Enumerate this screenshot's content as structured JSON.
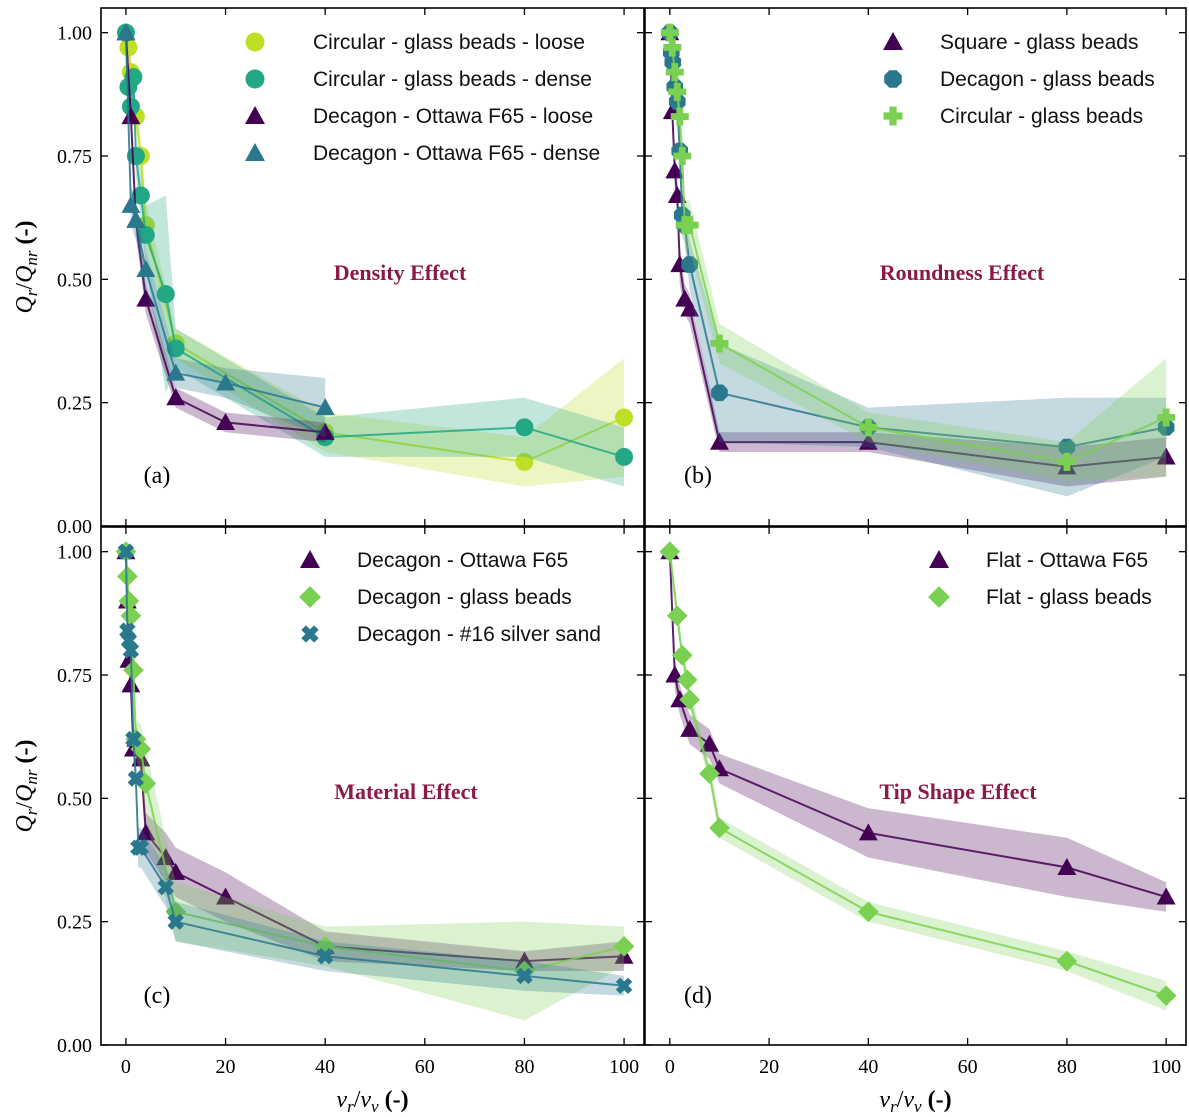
{
  "chart_data": [
    {
      "type": "scatter",
      "panel_tag": "(a)",
      "annotation": "Density Effect",
      "xlim": [
        -5,
        104
      ],
      "ylim": [
        0,
        1.05
      ],
      "ylabel_main": "Q",
      "ylabel_sub_r": "r",
      "ylabel_slash": "/",
      "ylabel_sub_nr": "nr",
      "ylabel_unit": " (-)",
      "yticks": [
        "0.00",
        "0.25",
        "0.50",
        "0.75",
        "1.00"
      ],
      "legend_position": "top-right",
      "series": [
        {
          "name": "Circular - glass beads - loose",
          "color": "#bddf26",
          "marker": "circle",
          "x": [
            0,
            0.5,
            1,
            2,
            3,
            4,
            10,
            40,
            80,
            100
          ],
          "y": [
            1.0,
            0.97,
            0.92,
            0.83,
            0.75,
            0.61,
            0.37,
            0.19,
            0.13,
            0.22
          ],
          "band": [
            0.02,
            0.02,
            0.02,
            0.03,
            0.04,
            0.05,
            0.03,
            0.04,
            0.05,
            0.12
          ]
        },
        {
          "name": "Circular - glass beads - dense",
          "color": "#22a884",
          "marker": "circle",
          "x": [
            0,
            0.5,
            1,
            1.5,
            2,
            3,
            4,
            8,
            10,
            40,
            80,
            100
          ],
          "y": [
            1.0,
            0.89,
            0.85,
            0.91,
            0.75,
            0.67,
            0.59,
            0.47,
            0.36,
            0.18,
            0.2,
            0.14
          ],
          "band": [
            0.02,
            0.03,
            0.03,
            0.03,
            0.04,
            0.05,
            0.06,
            0.2,
            0.04,
            0.04,
            0.06,
            0.06
          ]
        },
        {
          "name": "Decagon - Ottawa F65 - loose",
          "color": "#440154",
          "marker": "triangle",
          "x": [
            0,
            1,
            2,
            4,
            10,
            20,
            40
          ],
          "y": [
            1.0,
            0.83,
            0.62,
            0.46,
            0.26,
            0.21,
            0.19
          ],
          "band": [
            0.02,
            0.03,
            0.03,
            0.03,
            0.02,
            0.02,
            0.02
          ]
        },
        {
          "name": "Decagon - Ottawa F65 - dense",
          "color": "#2a788e",
          "marker": "triangle",
          "x": [
            0,
            1,
            2,
            4,
            10,
            20,
            40
          ],
          "y": [
            1.0,
            0.65,
            0.62,
            0.52,
            0.31,
            0.29,
            0.24
          ],
          "band": [
            0.02,
            0.04,
            0.04,
            0.04,
            0.03,
            0.03,
            0.06
          ]
        }
      ]
    },
    {
      "type": "scatter",
      "panel_tag": "(b)",
      "annotation": "Roundness Effect",
      "xlim": [
        -5,
        104
      ],
      "ylim": [
        0,
        1.05
      ],
      "legend_position": "top-right",
      "series": [
        {
          "name": "Square - glass beads",
          "color": "#440154",
          "marker": "triangle",
          "x": [
            0,
            0.5,
            1,
            1.5,
            2,
            3,
            4,
            10,
            40,
            80,
            100
          ],
          "y": [
            1.0,
            0.84,
            0.72,
            0.67,
            0.53,
            0.46,
            0.44,
            0.17,
            0.17,
            0.12,
            0.14
          ],
          "band": [
            0.02,
            0.03,
            0.03,
            0.03,
            0.04,
            0.03,
            0.03,
            0.02,
            0.02,
            0.04,
            0.04
          ]
        },
        {
          "name": "Decagon - glass beads",
          "color": "#2a788e",
          "marker": "octagon",
          "x": [
            0,
            0.3,
            0.6,
            1,
            1.5,
            2,
            2.5,
            3,
            4,
            10,
            40,
            80,
            100
          ],
          "y": [
            1.0,
            0.96,
            0.94,
            0.89,
            0.86,
            0.76,
            0.63,
            0.61,
            0.53,
            0.27,
            0.2,
            0.16,
            0.2
          ],
          "band": [
            0.02,
            0.02,
            0.02,
            0.03,
            0.03,
            0.04,
            0.04,
            0.04,
            0.05,
            0.1,
            0.04,
            0.1,
            0.06
          ]
        },
        {
          "name": "Circular - glass beads",
          "color": "#7ad151",
          "marker": "plus",
          "x": [
            0,
            0.5,
            1,
            1.5,
            2,
            2.5,
            3,
            4,
            10,
            40,
            80,
            100
          ],
          "y": [
            1.0,
            0.97,
            0.92,
            0.88,
            0.83,
            0.75,
            0.61,
            0.61,
            0.37,
            0.2,
            0.13,
            0.22
          ],
          "band": [
            0.02,
            0.02,
            0.02,
            0.03,
            0.03,
            0.04,
            0.05,
            0.05,
            0.04,
            0.03,
            0.04,
            0.12
          ]
        }
      ]
    },
    {
      "type": "scatter",
      "panel_tag": "(c)",
      "annotation": "Material Effect",
      "xlim": [
        -5,
        104
      ],
      "ylim": [
        0,
        1.05
      ],
      "xlabel_main": "v",
      "xlabel_sub_r": "r",
      "xlabel_slash": "/",
      "xlabel_sub_v": "v",
      "xlabel_unit": " (-)",
      "ylabel_main": "Q",
      "ylabel_sub_r": "r",
      "ylabel_slash": "/",
      "ylabel_sub_nr": "nr",
      "ylabel_unit": " (-)",
      "yticks": [
        "0.00",
        "0.25",
        "0.50",
        "0.75",
        "1.00"
      ],
      "xticks": [
        "0",
        "20",
        "40",
        "60",
        "80",
        "100"
      ],
      "legend_position": "top-right",
      "series": [
        {
          "name": "Decagon - Ottawa F65",
          "color": "#440154",
          "marker": "triangle",
          "x": [
            0,
            0.3,
            0.6,
            1,
            1.5,
            2,
            3,
            4,
            8,
            10,
            20,
            40,
            80,
            100
          ],
          "y": [
            1.0,
            0.9,
            0.78,
            0.73,
            0.6,
            0.62,
            0.58,
            0.43,
            0.38,
            0.35,
            0.3,
            0.2,
            0.17,
            0.18
          ],
          "band": [
            0.02,
            0.03,
            0.03,
            0.03,
            0.03,
            0.03,
            0.03,
            0.04,
            0.05,
            0.05,
            0.05,
            0.03,
            0.02,
            0.03
          ]
        },
        {
          "name": "Decagon - glass beads",
          "color": "#7ad151",
          "marker": "diamond",
          "x": [
            0,
            0.3,
            0.6,
            1,
            1.5,
            2,
            3,
            4,
            10,
            40,
            80,
            100
          ],
          "y": [
            1.0,
            0.95,
            0.9,
            0.87,
            0.76,
            0.62,
            0.6,
            0.53,
            0.27,
            0.2,
            0.15,
            0.2
          ],
          "band": [
            0.02,
            0.03,
            0.03,
            0.03,
            0.04,
            0.04,
            0.05,
            0.07,
            0.06,
            0.04,
            0.1,
            0.04
          ]
        },
        {
          "name": "Decagon - #16 silver sand",
          "color": "#2a788e",
          "marker": "cross",
          "x": [
            0,
            0.3,
            0.6,
            1,
            1.5,
            2,
            2.5,
            3,
            8,
            10,
            40,
            80,
            100
          ],
          "y": [
            1.0,
            0.84,
            0.82,
            0.8,
            0.62,
            0.54,
            0.4,
            0.4,
            0.32,
            0.25,
            0.18,
            0.14,
            0.12
          ],
          "band": [
            0.02,
            0.03,
            0.03,
            0.03,
            0.04,
            0.04,
            0.04,
            0.04,
            0.04,
            0.04,
            0.03,
            0.03,
            0.02
          ]
        }
      ]
    },
    {
      "type": "scatter",
      "panel_tag": "(d)",
      "annotation": "Tip Shape Effect",
      "xlim": [
        -5,
        104
      ],
      "ylim": [
        0,
        1.05
      ],
      "xlabel_main": "v",
      "xlabel_sub_r": "r",
      "xlabel_slash": "/",
      "xlabel_sub_v": "v",
      "xlabel_unit": " (-)",
      "xticks": [
        "0",
        "20",
        "40",
        "60",
        "80",
        "100"
      ],
      "legend_position": "top-right",
      "series": [
        {
          "name": "Flat - Ottawa F65",
          "color": "#440154",
          "marker": "triangle",
          "x": [
            0,
            1,
            2,
            4,
            8,
            10,
            40,
            80,
            100
          ],
          "y": [
            1.0,
            0.75,
            0.7,
            0.64,
            0.61,
            0.56,
            0.43,
            0.36,
            0.3
          ],
          "band": [
            0.02,
            0.03,
            0.03,
            0.03,
            0.03,
            0.03,
            0.05,
            0.06,
            0.03
          ]
        },
        {
          "name": "Flat - glass beads",
          "color": "#7ad151",
          "marker": "diamond",
          "x": [
            0,
            1.5,
            2.5,
            3.5,
            4,
            8,
            10,
            40,
            80,
            100
          ],
          "y": [
            1.0,
            0.87,
            0.79,
            0.74,
            0.7,
            0.55,
            0.44,
            0.27,
            0.17,
            0.1
          ],
          "band": [
            0.02,
            0.02,
            0.02,
            0.02,
            0.02,
            0.02,
            0.02,
            0.02,
            0.02,
            0.03
          ]
        }
      ]
    }
  ]
}
